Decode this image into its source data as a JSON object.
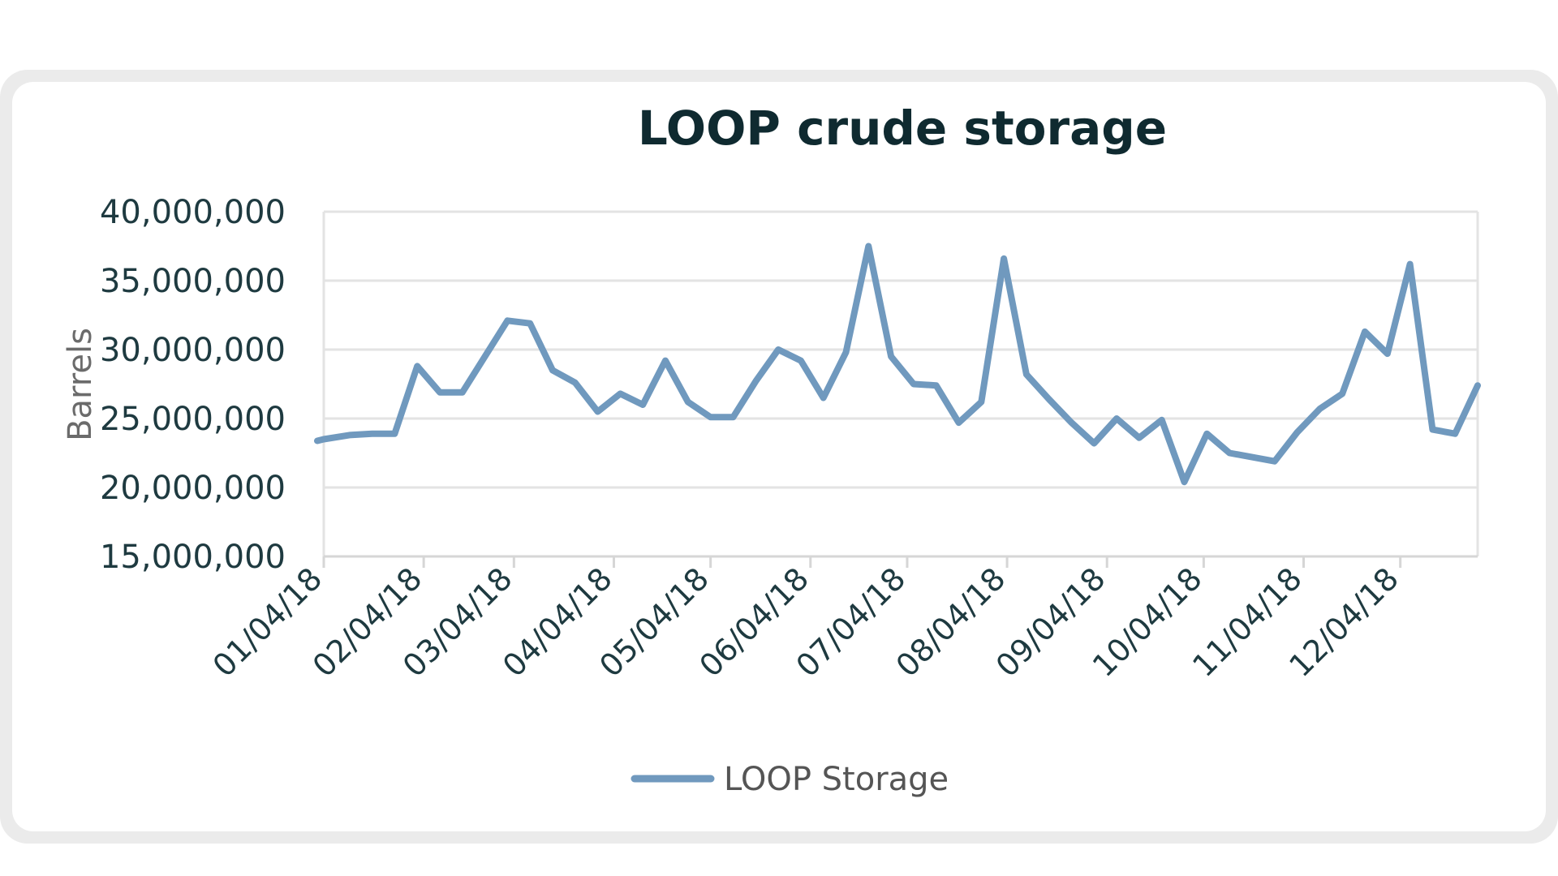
{
  "chart_data": {
    "type": "line",
    "title": "LOOP crude storage",
    "xlabel": "",
    "ylabel": "Barrels",
    "ylim": [
      15000000,
      40000000
    ],
    "y_ticks": [
      "15,000,000",
      "20,000,000",
      "25,000,000",
      "30,000,000",
      "35,000,000",
      "40,000,000"
    ],
    "x_ticks": [
      "01/04/18",
      "02/04/18",
      "03/04/18",
      "04/04/18",
      "05/04/18",
      "06/04/18",
      "07/04/18",
      "08/04/18",
      "09/04/18",
      "10/04/18",
      "11/04/18",
      "12/04/18"
    ],
    "grid": true,
    "legend": "bottom",
    "color": "#7099be",
    "series": [
      {
        "name": "LOOP Storage",
        "x": [
          "2018-01-04",
          "2018-01-12",
          "2018-01-19",
          "2018-01-26",
          "2018-02-02",
          "2018-02-09",
          "2018-02-16",
          "2018-02-23",
          "2018-03-02",
          "2018-03-09",
          "2018-03-16",
          "2018-03-23",
          "2018-03-30",
          "2018-04-06",
          "2018-04-13",
          "2018-04-20",
          "2018-04-27",
          "2018-05-04",
          "2018-05-11",
          "2018-05-18",
          "2018-05-25",
          "2018-06-01",
          "2018-06-08",
          "2018-06-15",
          "2018-06-22",
          "2018-06-29",
          "2018-07-06",
          "2018-07-13",
          "2018-07-20",
          "2018-07-27",
          "2018-08-03",
          "2018-08-10",
          "2018-08-17",
          "2018-08-24",
          "2018-08-31",
          "2018-09-07",
          "2018-09-14",
          "2018-09-21",
          "2018-09-28",
          "2018-10-05",
          "2018-10-12",
          "2018-10-19",
          "2018-10-26",
          "2018-11-02",
          "2018-11-09",
          "2018-11-16",
          "2018-11-23",
          "2018-11-30",
          "2018-12-07",
          "2018-12-14",
          "2018-12-21"
        ],
        "values": [
          23500000,
          23800000,
          23900000,
          23900000,
          28800000,
          26900000,
          26900000,
          29500000,
          32100000,
          31900000,
          28500000,
          27600000,
          25500000,
          26800000,
          26000000,
          29200000,
          26200000,
          25100000,
          25100000,
          27700000,
          30000000,
          29200000,
          26500000,
          29800000,
          37500000,
          29500000,
          27500000,
          27400000,
          24700000,
          26200000,
          36600000,
          28200000,
          26400000,
          24700000,
          23200000,
          25000000,
          23600000,
          24900000,
          20400000,
          23900000,
          22500000,
          22200000,
          21900000,
          24000000,
          25700000,
          26800000,
          31300000,
          29700000,
          36200000,
          24200000,
          23900000
        ]
      }
    ],
    "x_end": "2018-12-28",
    "y_end": 27400000
  }
}
